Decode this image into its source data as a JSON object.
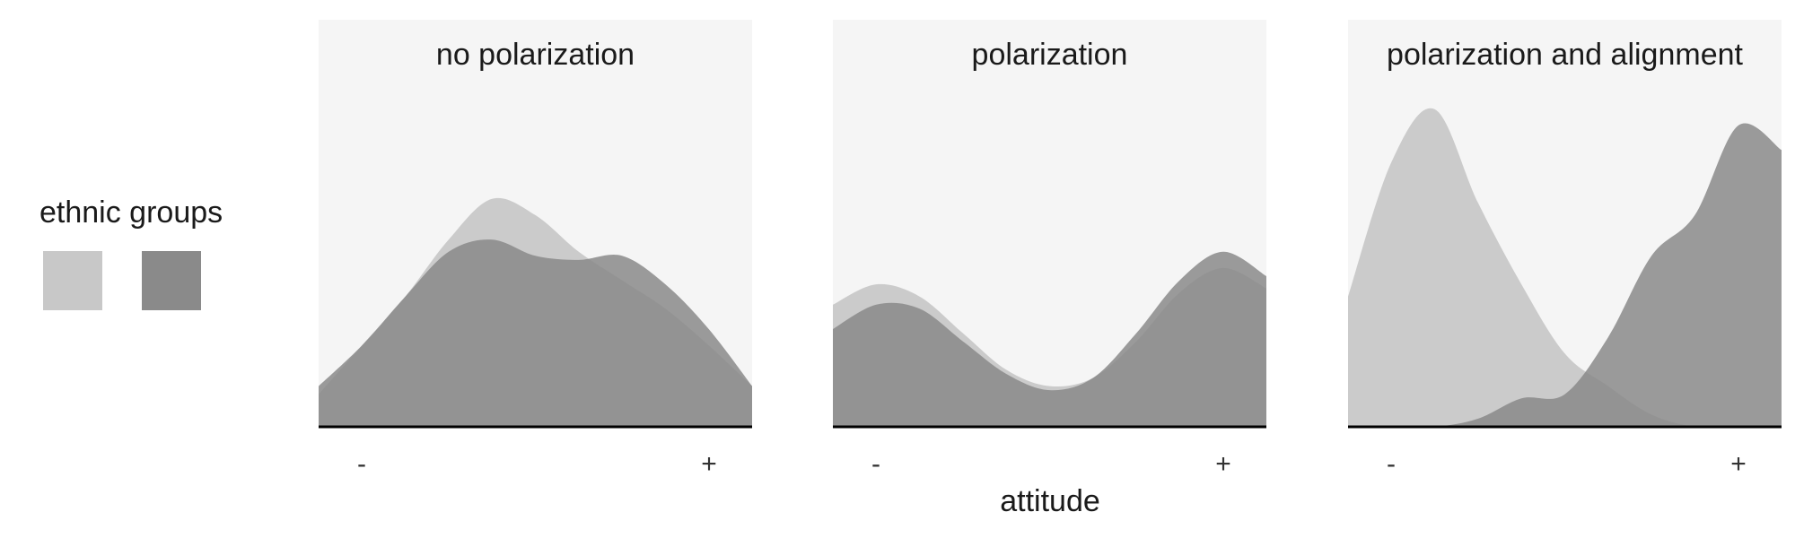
{
  "colors": {
    "panel_bg": "#f5f5f5",
    "baseline": "#000000",
    "group_light": "#c8c8c8",
    "group_dark": "#8a8a8a"
  },
  "legend": {
    "title": "ethnic groups",
    "groups": [
      "light",
      "dark"
    ]
  },
  "chart_data": [
    {
      "type": "area",
      "title": "no polarization",
      "x_ticks": [
        "-",
        "+"
      ],
      "x": [
        0,
        0.1,
        0.2,
        0.3,
        0.4,
        0.5,
        0.6,
        0.7,
        0.8,
        0.9,
        1.0
      ],
      "xlim": [
        0,
        1
      ],
      "ylim": [
        0,
        1
      ],
      "series": [
        {
          "group": "light",
          "values": [
            0.08,
            0.2,
            0.32,
            0.46,
            0.56,
            0.52,
            0.43,
            0.36,
            0.29,
            0.2,
            0.1
          ]
        },
        {
          "group": "dark",
          "values": [
            0.1,
            0.2,
            0.32,
            0.43,
            0.46,
            0.42,
            0.41,
            0.42,
            0.35,
            0.24,
            0.1
          ]
        }
      ]
    },
    {
      "type": "area",
      "title": "polarization",
      "x_ticks": [
        "-",
        "+"
      ],
      "x": [
        0,
        0.1,
        0.2,
        0.3,
        0.4,
        0.5,
        0.6,
        0.7,
        0.8,
        0.9,
        1.0
      ],
      "xlim": [
        0,
        1
      ],
      "ylim": [
        0,
        1
      ],
      "series": [
        {
          "group": "light",
          "values": [
            0.3,
            0.35,
            0.32,
            0.23,
            0.14,
            0.1,
            0.12,
            0.21,
            0.33,
            0.39,
            0.34
          ]
        },
        {
          "group": "dark",
          "values": [
            0.24,
            0.3,
            0.29,
            0.21,
            0.13,
            0.09,
            0.12,
            0.23,
            0.36,
            0.43,
            0.37
          ]
        }
      ]
    },
    {
      "type": "area",
      "title": "polarization and alignment",
      "x_ticks": [
        "-",
        "+"
      ],
      "x": [
        0,
        0.1,
        0.2,
        0.3,
        0.4,
        0.5,
        0.6,
        0.7,
        0.8,
        0.9,
        1.0
      ],
      "xlim": [
        0,
        1
      ],
      "ylim": [
        0,
        1
      ],
      "series": [
        {
          "group": "light",
          "values": [
            0.32,
            0.65,
            0.78,
            0.55,
            0.35,
            0.18,
            0.1,
            0.03,
            0.0,
            0.0,
            0.0
          ]
        },
        {
          "group": "dark",
          "values": [
            0.0,
            0.0,
            0.0,
            0.02,
            0.07,
            0.08,
            0.22,
            0.42,
            0.52,
            0.74,
            0.68
          ]
        }
      ]
    }
  ],
  "x_axis_label": "attitude"
}
